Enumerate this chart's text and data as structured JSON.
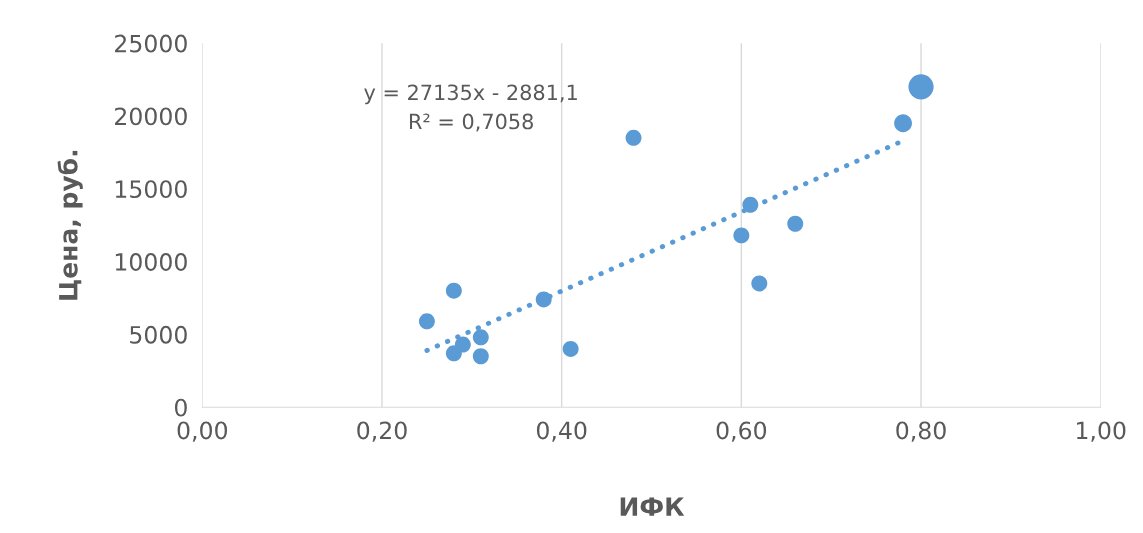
{
  "chart_data": {
    "type": "bubble",
    "xlabel": "ИФК",
    "ylabel": "Цена, руб.",
    "xlim": [
      0,
      1
    ],
    "ylim": [
      0,
      25000
    ],
    "xticks": [
      {
        "value": 0,
        "label": "0,00"
      },
      {
        "value": 0.2,
        "label": "0,20"
      },
      {
        "value": 0.4,
        "label": "0,40"
      },
      {
        "value": 0.6,
        "label": "0,60"
      },
      {
        "value": 0.8,
        "label": "0,80"
      },
      {
        "value": 1,
        "label": "1,00"
      }
    ],
    "yticks": [
      0,
      5000,
      10000,
      15000,
      20000,
      25000
    ],
    "grid": "x",
    "series": [
      {
        "color": "#5b9bd5",
        "x": [
          0.25,
          0.28,
          0.29,
          0.28,
          0.31,
          0.31,
          0.38,
          0.41,
          0.48,
          0.6,
          0.61,
          0.62,
          0.66,
          0.78,
          0.8
        ],
        "values": [
          5900,
          8000,
          4300,
          3700,
          4800,
          3500,
          7400,
          4000,
          18500,
          11800,
          13900,
          8500,
          12600,
          19500,
          22000
        ],
        "sizes": [
          0.4,
          0.4,
          0.4,
          0.4,
          0.4,
          0.4,
          0.4,
          0.4,
          0.4,
          0.4,
          0.4,
          0.4,
          0.4,
          0.5,
          1
        ]
      },
      {
        "type": "line",
        "color": "#5b9bd5",
        "line_style": "dotted",
        "marker": "none",
        "x": [
          0.25,
          0.78
        ],
        "values": [
          3900,
          18300
        ]
      }
    ],
    "annotations": [
      "y = 27135x - 2881,1",
      "R² = 0,7058"
    ]
  }
}
